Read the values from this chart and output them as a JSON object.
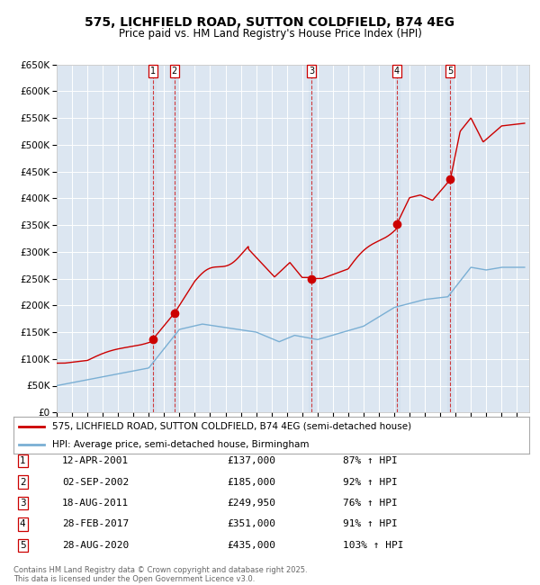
{
  "title": "575, LICHFIELD ROAD, SUTTON COLDFIELD, B74 4EG",
  "subtitle": "Price paid vs. HM Land Registry's House Price Index (HPI)",
  "bg_color": "#dce6f1",
  "ylim": [
    0,
    650000
  ],
  "yticks": [
    0,
    50000,
    100000,
    150000,
    200000,
    250000,
    300000,
    350000,
    400000,
    450000,
    500000,
    550000,
    600000,
    650000
  ],
  "legend_property_label": "575, LICHFIELD ROAD, SUTTON COLDFIELD, B74 4EG (semi-detached house)",
  "legend_hpi_label": "HPI: Average price, semi-detached house, Birmingham",
  "property_color": "#cc0000",
  "hpi_color": "#7aafd4",
  "sale_points": [
    {
      "year": 2001.28,
      "price": 137000,
      "label": "1"
    },
    {
      "year": 2002.67,
      "price": 185000,
      "label": "2"
    },
    {
      "year": 2011.63,
      "price": 249950,
      "label": "3"
    },
    {
      "year": 2017.16,
      "price": 351000,
      "label": "4"
    },
    {
      "year": 2020.66,
      "price": 435000,
      "label": "5"
    }
  ],
  "table_entries": [
    {
      "num": "1",
      "date": "12-APR-2001",
      "price": "£137,000",
      "hpi": "87% ↑ HPI"
    },
    {
      "num": "2",
      "date": "02-SEP-2002",
      "price": "£185,000",
      "hpi": "92% ↑ HPI"
    },
    {
      "num": "3",
      "date": "18-AUG-2011",
      "price": "£249,950",
      "hpi": "76% ↑ HPI"
    },
    {
      "num": "4",
      "date": "28-FEB-2017",
      "price": "£351,000",
      "hpi": "91% ↑ HPI"
    },
    {
      "num": "5",
      "date": "28-AUG-2020",
      "price": "£435,000",
      "hpi": "103% ↑ HPI"
    }
  ],
  "footer": "Contains HM Land Registry data © Crown copyright and database right 2025.\nThis data is licensed under the Open Government Licence v3.0."
}
